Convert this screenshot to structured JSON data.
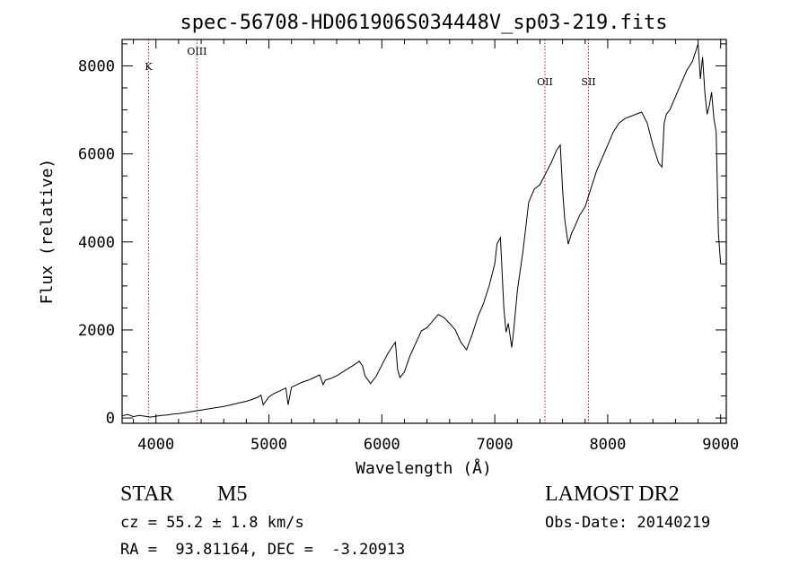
{
  "chart_data": {
    "type": "line",
    "title": "spec-56708-HD061906S034448V_sp03-219.fits",
    "xlabel": "Wavelength (Å)",
    "ylabel": "Flux (relative)",
    "xlim": [
      3700,
      9050
    ],
    "ylim": [
      -120,
      8600
    ],
    "grid": false,
    "xticks": [
      4000,
      5000,
      6000,
      7000,
      8000,
      9000
    ],
    "yticks": [
      0,
      2000,
      4000,
      6000,
      8000
    ],
    "xtick_labels": [
      "4000",
      "5000",
      "6000",
      "7000",
      "8000",
      "9000"
    ],
    "ytick_labels": [
      "0",
      "2000",
      "4000",
      "6000",
      "8000"
    ],
    "lines": [
      {
        "label": "K",
        "x": 3934
      },
      {
        "label": "OIII",
        "x": 4363
      },
      {
        "label": "OII",
        "x": 7444
      },
      {
        "label": "SII",
        "x": 7830
      }
    ],
    "line_color": "#b22222",
    "series": [
      {
        "x": [
          3700,
          3750,
          3800,
          3850,
          3900,
          3950,
          4000,
          4050,
          4100,
          4150,
          4200,
          4250,
          4300,
          4350,
          4400,
          4450,
          4500,
          4550,
          4600,
          4650,
          4700,
          4750,
          4800,
          4850,
          4900,
          4930,
          4950,
          5000,
          5050,
          5100,
          5150,
          5170,
          5200,
          5250,
          5300,
          5350,
          5400,
          5450,
          5480,
          5500,
          5550,
          5600,
          5650,
          5700,
          5750,
          5800,
          5830,
          5850,
          5900,
          5950,
          6000,
          6050,
          6100,
          6120,
          6140,
          6160,
          6200,
          6250,
          6300,
          6350,
          6400,
          6450,
          6500,
          6550,
          6600,
          6650,
          6700,
          6750,
          6800,
          6850,
          6900,
          6950,
          7000,
          7020,
          7050,
          7080,
          7100,
          7120,
          7150,
          7170,
          7200,
          7250,
          7300,
          7350,
          7400,
          7450,
          7500,
          7550,
          7580,
          7600,
          7620,
          7650,
          7680,
          7700,
          7750,
          7800,
          7850,
          7900,
          7950,
          8000,
          8050,
          8100,
          8150,
          8200,
          8250,
          8300,
          8350,
          8400,
          8450,
          8480,
          8500,
          8520,
          8550,
          8600,
          8650,
          8700,
          8750,
          8800,
          8820,
          8840,
          8860,
          8880,
          8900,
          8920,
          8940,
          8960,
          8980,
          9000
        ],
        "y": [
          50,
          80,
          30,
          60,
          40,
          20,
          40,
          60,
          70,
          90,
          100,
          120,
          140,
          160,
          180,
          200,
          220,
          240,
          260,
          290,
          320,
          350,
          380,
          420,
          470,
          520,
          300,
          480,
          560,
          620,
          680,
          300,
          700,
          760,
          820,
          860,
          920,
          980,
          760,
          860,
          900,
          960,
          1040,
          1120,
          1200,
          1290,
          1180,
          960,
          780,
          950,
          1200,
          1450,
          1650,
          1720,
          1100,
          920,
          1050,
          1420,
          1700,
          1980,
          2050,
          2200,
          2350,
          2280,
          2150,
          2000,
          1720,
          1550,
          1900,
          2300,
          2600,
          3000,
          3500,
          3950,
          4100,
          2500,
          1950,
          2150,
          1600,
          2050,
          2900,
          3800,
          4900,
          5200,
          5300,
          5550,
          5800,
          6100,
          6200,
          5200,
          4500,
          3950,
          4200,
          4300,
          4600,
          4800,
          5200,
          5600,
          5900,
          6200,
          6500,
          6700,
          6800,
          6850,
          6900,
          6950,
          6700,
          6200,
          5800,
          5700,
          6700,
          6900,
          7000,
          7300,
          7600,
          7900,
          8100,
          8500,
          7700,
          8200,
          7400,
          6900,
          7100,
          7400,
          6800,
          6500,
          4200,
          3500
        ]
      }
    ]
  },
  "info": {
    "object_class": "STAR",
    "subclass": "M5",
    "survey": "LAMOST DR2",
    "redshift_line": "cz = 55.2 ± 1.8 km/s",
    "obs_date_line": "Obs-Date: 20140219",
    "coord_line": "RA =  93.81164, DEC =  -3.20913"
  }
}
